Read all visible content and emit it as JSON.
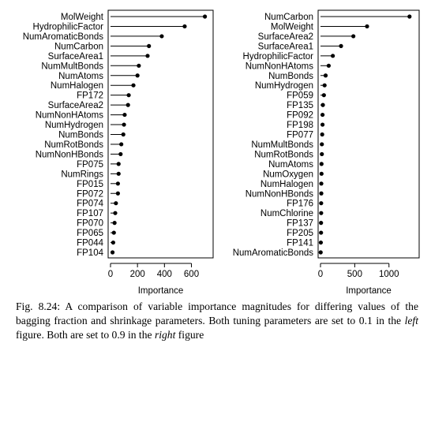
{
  "chart_data": [
    {
      "type": "dot",
      "panel": "left",
      "xlabel": "Importance",
      "xlim": [
        0,
        720
      ],
      "xticks": [
        0,
        200,
        400,
        600
      ],
      "grid": false,
      "categories": [
        "MolWeight",
        "HydrophilicFactor",
        "NumAromaticBonds",
        "NumCarbon",
        "SurfaceArea1",
        "NumMultBonds",
        "NumAtoms",
        "NumHalogen",
        "FP172",
        "SurfaceArea2",
        "NumNonHAtoms",
        "NumHydrogen",
        "NumBonds",
        "NumRotBonds",
        "NumNonHBonds",
        "FP075",
        "NumRings",
        "FP015",
        "FP072",
        "FP074",
        "FP107",
        "FP070",
        "FP065",
        "FP044",
        "FP104"
      ],
      "values": [
        700,
        550,
        380,
        285,
        275,
        210,
        200,
        170,
        135,
        130,
        105,
        100,
        95,
        80,
        75,
        60,
        60,
        55,
        55,
        40,
        35,
        30,
        25,
        20,
        15
      ]
    },
    {
      "type": "dot",
      "panel": "right",
      "xlabel": "Importance",
      "xlim": [
        0,
        1360
      ],
      "xticks": [
        0,
        500,
        1000
      ],
      "grid": false,
      "categories": [
        "NumCarbon",
        "MolWeight",
        "SurfaceArea2",
        "SurfaceArea1",
        "HydrophilicFactor",
        "NumNonHAtoms",
        "NumBonds",
        "NumHydrogen",
        "FP059",
        "FP135",
        "FP092",
        "FP198",
        "FP077",
        "NumMultBonds",
        "NumRotBonds",
        "NumAtoms",
        "NumOxygen",
        "NumHalogen",
        "NumNonHBonds",
        "FP176",
        "NumChlorine",
        "FP137",
        "FP205",
        "FP141",
        "NumAromaticBonds"
      ],
      "values": [
        1300,
        680,
        480,
        300,
        180,
        120,
        75,
        60,
        50,
        35,
        30,
        30,
        25,
        20,
        20,
        15,
        15,
        12,
        12,
        10,
        10,
        8,
        8,
        5,
        3
      ]
    }
  ],
  "caption": {
    "label": "Fig. 8.24:",
    "text_before_left": " A comparison of variable importance magnitudes for differing values of the bagging fraction and shrinkage parameters. Both tuning parameters are set to 0.1 in the ",
    "left_word": "left",
    "text_middle": " figure. Both are set to 0.9 in the ",
    "right_word": "right",
    "text_after": " figure"
  }
}
